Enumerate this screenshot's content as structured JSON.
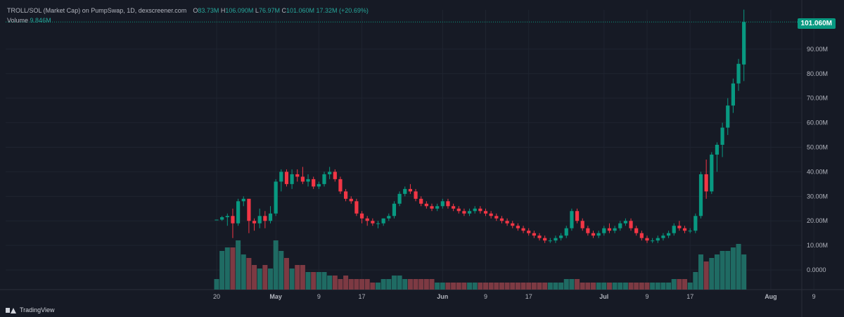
{
  "legend": {
    "title": "TROLL/SOL (Market Cap) on PumpSwap, 1D, dexscreener.com",
    "open_label": "O",
    "open_value": "83.73M",
    "high_label": "H",
    "high_value": "106.090M",
    "low_label": "L",
    "low_value": "76.97M",
    "close_label": "C",
    "close_value": "101.060M",
    "change_value": "17.32M (+20.69%)",
    "volume_label": "Volume",
    "volume_value": "9.846M"
  },
  "last_price_label": "101.060M",
  "branding": "TradingView",
  "colors": {
    "background": "#161a25",
    "up": "#089981",
    "down": "#f23645",
    "up_volume": "#1f6b63",
    "down_volume": "#7d3a43",
    "grid": "#1f2430",
    "axis_text": "#b2b5be"
  },
  "chart_data": {
    "type": "candlestick",
    "title": "TROLL/SOL (Market Cap) on PumpSwap, 1D, dexscreener.com",
    "x_start": "2025-04-20",
    "x_ticks": [
      {
        "date": "2025-04-20",
        "label": "20"
      },
      {
        "date": "2025-05-01",
        "label": "May"
      },
      {
        "date": "2025-05-09",
        "label": "9"
      },
      {
        "date": "2025-05-17",
        "label": "17"
      },
      {
        "date": "2025-06-01",
        "label": "Jun"
      },
      {
        "date": "2025-06-09",
        "label": "9"
      },
      {
        "date": "2025-06-17",
        "label": "17"
      },
      {
        "date": "2025-07-01",
        "label": "Jul"
      },
      {
        "date": "2025-07-09",
        "label": "9"
      },
      {
        "date": "2025-07-17",
        "label": "17"
      },
      {
        "date": "2025-08-01",
        "label": "Aug"
      },
      {
        "date": "2025-08-09",
        "label": "9"
      }
    ],
    "y_ticks": [
      {
        "value": 0,
        "label": "0.0000"
      },
      {
        "value": 10,
        "label": "10.00M"
      },
      {
        "value": 20,
        "label": "20.00M"
      },
      {
        "value": 30,
        "label": "30.00M"
      },
      {
        "value": 40,
        "label": "40.00M"
      },
      {
        "value": 50,
        "label": "50.00M"
      },
      {
        "value": 60,
        "label": "60.00M"
      },
      {
        "value": 70,
        "label": "70.00M"
      },
      {
        "value": 80,
        "label": "80.00M"
      },
      {
        "value": 90,
        "label": "90.00M"
      }
    ],
    "y_unit": "M",
    "ylim": [
      -8,
      106
    ],
    "candles": [
      [
        20.5,
        20.5,
        20.5,
        20.5,
        3
      ],
      [
        20.5,
        22,
        20,
        21.5,
        11
      ],
      [
        21.5,
        23,
        18,
        22,
        12
      ],
      [
        22,
        25,
        13,
        19,
        12
      ],
      [
        19,
        29,
        18,
        28,
        14
      ],
      [
        28,
        30,
        26,
        29,
        10
      ],
      [
        29,
        29,
        15,
        20,
        9
      ],
      [
        20,
        21,
        16,
        19,
        7
      ],
      [
        19,
        25,
        17,
        22,
        6
      ],
      [
        22,
        24,
        17,
        20,
        7
      ],
      [
        20,
        26,
        19,
        23,
        6
      ],
      [
        23,
        37,
        22,
        36,
        14
      ],
      [
        36,
        41,
        32,
        40,
        11
      ],
      [
        40,
        41,
        34,
        35,
        9
      ],
      [
        35,
        41,
        33,
        39,
        6
      ],
      [
        39,
        41,
        36,
        38,
        7
      ],
      [
        38,
        42,
        35,
        36,
        7
      ],
      [
        36,
        39,
        34,
        37,
        5
      ],
      [
        37,
        38,
        33,
        34,
        5
      ],
      [
        34,
        36,
        33,
        35,
        5
      ],
      [
        35,
        40,
        34,
        39,
        5
      ],
      [
        39,
        42,
        37,
        40,
        4
      ],
      [
        40,
        41,
        36,
        37,
        4
      ],
      [
        37,
        38,
        31,
        32,
        3
      ],
      [
        32,
        33,
        28,
        29,
        4
      ],
      [
        29,
        30,
        27,
        28,
        3
      ],
      [
        28,
        29,
        22,
        23,
        3
      ],
      [
        23,
        24,
        19,
        21,
        3
      ],
      [
        21,
        22,
        18,
        20,
        3
      ],
      [
        20,
        21,
        18,
        19,
        2
      ],
      [
        19,
        20,
        17,
        19,
        2
      ],
      [
        19,
        21,
        18,
        21,
        3
      ],
      [
        21,
        23,
        20,
        22,
        3
      ],
      [
        22,
        28,
        21,
        27,
        4
      ],
      [
        27,
        32,
        26,
        31,
        4
      ],
      [
        31,
        34,
        30,
        33,
        3
      ],
      [
        33,
        35,
        31,
        32,
        3
      ],
      [
        32,
        33,
        28,
        29,
        3
      ],
      [
        29,
        30,
        26,
        27,
        3
      ],
      [
        27,
        28,
        25,
        26,
        3
      ],
      [
        26,
        27,
        24,
        25,
        3
      ],
      [
        25,
        27,
        24,
        26,
        2
      ],
      [
        26,
        29,
        25,
        28,
        2
      ],
      [
        28,
        29,
        25,
        26,
        2
      ],
      [
        26,
        27,
        24,
        25,
        2
      ],
      [
        25,
        26,
        23,
        24,
        2
      ],
      [
        24,
        25,
        22,
        23,
        2
      ],
      [
        23,
        25,
        22,
        24,
        2
      ],
      [
        24,
        26,
        23,
        25,
        2
      ],
      [
        25,
        26,
        23,
        24,
        2
      ],
      [
        24,
        25,
        22,
        23,
        2
      ],
      [
        23,
        24,
        21,
        22,
        2
      ],
      [
        22,
        23,
        20,
        21,
        2
      ],
      [
        21,
        22,
        19,
        20,
        2
      ],
      [
        20,
        21,
        18,
        19,
        2
      ],
      [
        19,
        20,
        17,
        18,
        2
      ],
      [
        18,
        19,
        16,
        17,
        2
      ],
      [
        17,
        18,
        15,
        16,
        2
      ],
      [
        16,
        17,
        14,
        15,
        2
      ],
      [
        15,
        16,
        13,
        14,
        2
      ],
      [
        14,
        15,
        12,
        13,
        2
      ],
      [
        13,
        14,
        11,
        12,
        2
      ],
      [
        12,
        13,
        11,
        12,
        2
      ],
      [
        12,
        14,
        11,
        13,
        2
      ],
      [
        13,
        15,
        12,
        14,
        2
      ],
      [
        14,
        18,
        13,
        17,
        3
      ],
      [
        17,
        25,
        16,
        24,
        3
      ],
      [
        24,
        25,
        19,
        20,
        3
      ],
      [
        20,
        21,
        16,
        17,
        2
      ],
      [
        17,
        18,
        14,
        15,
        2
      ],
      [
        15,
        16,
        13,
        14,
        2
      ],
      [
        14,
        16,
        13,
        15,
        2
      ],
      [
        15,
        18,
        14,
        17,
        2
      ],
      [
        17,
        19,
        15,
        16,
        2
      ],
      [
        16,
        18,
        15,
        17,
        2
      ],
      [
        17,
        20,
        16,
        19,
        2
      ],
      [
        19,
        21,
        18,
        20,
        2
      ],
      [
        20,
        21,
        16,
        17,
        2
      ],
      [
        17,
        18,
        14,
        15,
        2
      ],
      [
        15,
        16,
        12,
        13,
        2
      ],
      [
        13,
        14,
        11,
        12,
        2
      ],
      [
        12,
        13,
        11,
        12,
        2
      ],
      [
        12,
        14,
        11,
        13,
        2
      ],
      [
        13,
        15,
        12,
        14,
        2
      ],
      [
        14,
        16,
        13,
        15,
        2
      ],
      [
        15,
        19,
        14,
        18,
        3
      ],
      [
        18,
        20,
        16,
        17,
        3
      ],
      [
        17,
        18,
        15,
        16,
        3
      ],
      [
        16,
        17,
        15,
        16,
        2
      ],
      [
        16,
        23,
        15,
        22,
        5
      ],
      [
        22,
        40,
        21,
        39,
        10
      ],
      [
        39,
        45,
        29,
        32,
        8
      ],
      [
        32,
        48,
        31,
        47,
        9
      ],
      [
        47,
        52,
        40,
        51,
        10
      ],
      [
        51,
        60,
        46,
        58,
        11
      ],
      [
        58,
        70,
        55,
        67,
        11
      ],
      [
        67,
        78,
        64,
        76,
        12
      ],
      [
        76,
        86,
        73,
        84,
        13
      ],
      [
        83.73,
        106.09,
        76.97,
        101.06,
        10
      ]
    ]
  }
}
